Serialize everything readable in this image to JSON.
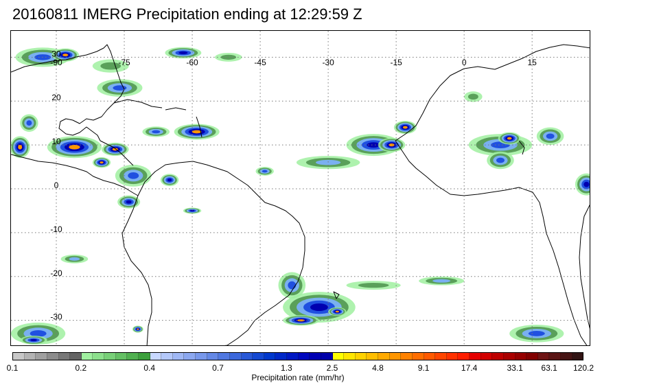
{
  "title": "20160811 IMERG Precipitation ending at 12:29:59 Z",
  "map": {
    "lon_range": [
      -100,
      28
    ],
    "lat_range": [
      -36,
      36
    ],
    "lon_ticks": [
      {
        "value": -90,
        "label": "-90"
      },
      {
        "value": -75,
        "label": "-75"
      },
      {
        "value": -60,
        "label": "-60"
      },
      {
        "value": -45,
        "label": "-45"
      },
      {
        "value": -30,
        "label": "-30"
      },
      {
        "value": -15,
        "label": "-15"
      },
      {
        "value": 0,
        "label": "0"
      },
      {
        "value": 15,
        "label": "15"
      }
    ],
    "lat_ticks": [
      {
        "value": 30,
        "label": "30"
      },
      {
        "value": 20,
        "label": "20"
      },
      {
        "value": 10,
        "label": "10"
      },
      {
        "value": 0,
        "label": "0"
      },
      {
        "value": -10,
        "label": "-10"
      },
      {
        "value": -20,
        "label": "-20"
      },
      {
        "value": -30,
        "label": "-30"
      }
    ],
    "grid": true
  },
  "colorbar": {
    "title": "Precipitation rate (mm/hr)",
    "colors": [
      "#c8c8c8",
      "#b4b4b4",
      "#a0a0a0",
      "#8c8c8c",
      "#787878",
      "#646464",
      "#a0f0a0",
      "#8ce08c",
      "#78d078",
      "#64c064",
      "#50b050",
      "#3ca03c",
      "#c8d8ff",
      "#b4c8fa",
      "#a0b8f5",
      "#8ca8f0",
      "#7898eb",
      "#6488e6",
      "#5078e1",
      "#3c68dc",
      "#2858d7",
      "#1448d2",
      "#0038cd",
      "#0028c8",
      "#0018c3",
      "#0008be",
      "#0000b4",
      "#0000aa",
      "#ffff00",
      "#ffe600",
      "#ffd200",
      "#ffbe00",
      "#ffaa00",
      "#ff9600",
      "#ff8200",
      "#ff6e00",
      "#ff5a00",
      "#ff4600",
      "#ff3200",
      "#ff1e00",
      "#e60000",
      "#d20000",
      "#be0000",
      "#aa0000",
      "#960000",
      "#820000",
      "#6e1414",
      "#5a1414",
      "#461414",
      "#321414"
    ],
    "labels": [
      {
        "value": "0.1",
        "pos": 0
      },
      {
        "value": "0.2",
        "pos": 0.12
      },
      {
        "value": "0.4",
        "pos": 0.24
      },
      {
        "value": "0.7",
        "pos": 0.36
      },
      {
        "value": "1.3",
        "pos": 0.48
      },
      {
        "value": "2.5",
        "pos": 0.56
      },
      {
        "value": "4.8",
        "pos": 0.64
      },
      {
        "value": "9.1",
        "pos": 0.72
      },
      {
        "value": "17.4",
        "pos": 0.8
      },
      {
        "value": "33.1",
        "pos": 0.88
      },
      {
        "value": "63.1",
        "pos": 0.94
      },
      {
        "value": "120.2",
        "pos": 1.0
      }
    ]
  },
  "precip_cells": [
    {
      "lon": -93,
      "lat": 30,
      "rx": 6,
      "ry": 2.2,
      "level": 3
    },
    {
      "lon": -88,
      "lat": 30.5,
      "rx": 3,
      "ry": 1.5,
      "level": 5
    },
    {
      "lon": -62,
      "lat": 31,
      "rx": 4,
      "ry": 1.3,
      "level": 4
    },
    {
      "lon": -76,
      "lat": 23,
      "rx": 5,
      "ry": 2,
      "level": 3
    },
    {
      "lon": -96,
      "lat": 15,
      "rx": 2,
      "ry": 2,
      "level": 3
    },
    {
      "lon": -98,
      "lat": 9.5,
      "rx": 2.2,
      "ry": 2.5,
      "level": 5
    },
    {
      "lon": -86,
      "lat": 9.5,
      "rx": 6,
      "ry": 2.5,
      "level": 5
    },
    {
      "lon": -77,
      "lat": 9,
      "rx": 3,
      "ry": 1.5,
      "level": 5
    },
    {
      "lon": -80,
      "lat": 6,
      "rx": 2,
      "ry": 1.2,
      "level": 5
    },
    {
      "lon": -59,
      "lat": 13,
      "rx": 5,
      "ry": 1.8,
      "level": 5
    },
    {
      "lon": -68,
      "lat": 13,
      "rx": 3,
      "ry": 1.2,
      "level": 3
    },
    {
      "lon": -73,
      "lat": 3,
      "rx": 4,
      "ry": 2.5,
      "level": 3
    },
    {
      "lon": -65,
      "lat": 2,
      "rx": 2,
      "ry": 1.4,
      "level": 4
    },
    {
      "lon": -74,
      "lat": -3,
      "rx": 2.5,
      "ry": 1.5,
      "level": 4
    },
    {
      "lon": -60,
      "lat": -5,
      "rx": 2,
      "ry": 0.7,
      "level": 4
    },
    {
      "lon": -44,
      "lat": 4,
      "rx": 2,
      "ry": 1,
      "level": 3
    },
    {
      "lon": -30,
      "lat": 6,
      "rx": 7,
      "ry": 1.5,
      "level": 2
    },
    {
      "lon": -20,
      "lat": 10,
      "rx": 6,
      "ry": 2.5,
      "level": 4
    },
    {
      "lon": -16,
      "lat": 10,
      "rx": 3,
      "ry": 1.6,
      "level": 5
    },
    {
      "lon": -13,
      "lat": 14,
      "rx": 2.5,
      "ry": 1.5,
      "level": 5
    },
    {
      "lon": 8,
      "lat": 10,
      "rx": 7,
      "ry": 2.5,
      "level": 3
    },
    {
      "lon": 10,
      "lat": 11.5,
      "rx": 2.5,
      "ry": 1.4,
      "level": 5
    },
    {
      "lon": 8,
      "lat": 6.5,
      "rx": 3,
      "ry": 2,
      "level": 3
    },
    {
      "lon": 19,
      "lat": 12,
      "rx": 3,
      "ry": 2,
      "level": 3
    },
    {
      "lon": 2,
      "lat": 21,
      "rx": 2,
      "ry": 1.2,
      "level": 1
    },
    {
      "lon": 27,
      "lat": 1,
      "rx": 2.5,
      "ry": 2.5,
      "level": 4
    },
    {
      "lon": -86,
      "lat": -16,
      "rx": 3,
      "ry": 1,
      "level": 2
    },
    {
      "lon": -38,
      "lat": -22,
      "rx": 3,
      "ry": 3,
      "level": 3
    },
    {
      "lon": -32,
      "lat": -27,
      "rx": 8,
      "ry": 3.5,
      "level": 4
    },
    {
      "lon": -36,
      "lat": -30,
      "rx": 4,
      "ry": 1.2,
      "level": 5
    },
    {
      "lon": -28,
      "lat": -28,
      "rx": 2,
      "ry": 1,
      "level": 5
    },
    {
      "lon": -20,
      "lat": -22,
      "rx": 6,
      "ry": 1,
      "level": 1
    },
    {
      "lon": -5,
      "lat": -21,
      "rx": 5,
      "ry": 1,
      "level": 2
    },
    {
      "lon": 16,
      "lat": -33,
      "rx": 6,
      "ry": 2,
      "level": 3
    },
    {
      "lon": -94,
      "lat": -33,
      "rx": 6,
      "ry": 2.5,
      "level": 3
    },
    {
      "lon": -95,
      "lat": -34.5,
      "rx": 3,
      "ry": 1,
      "level": 4
    },
    {
      "lon": -72,
      "lat": -32,
      "rx": 1.2,
      "ry": 0.8,
      "level": 5
    },
    {
      "lon": -78,
      "lat": 28,
      "rx": 4,
      "ry": 1.5,
      "level": 1
    },
    {
      "lon": -52,
      "lat": 30,
      "rx": 3,
      "ry": 1,
      "level": 1
    }
  ]
}
